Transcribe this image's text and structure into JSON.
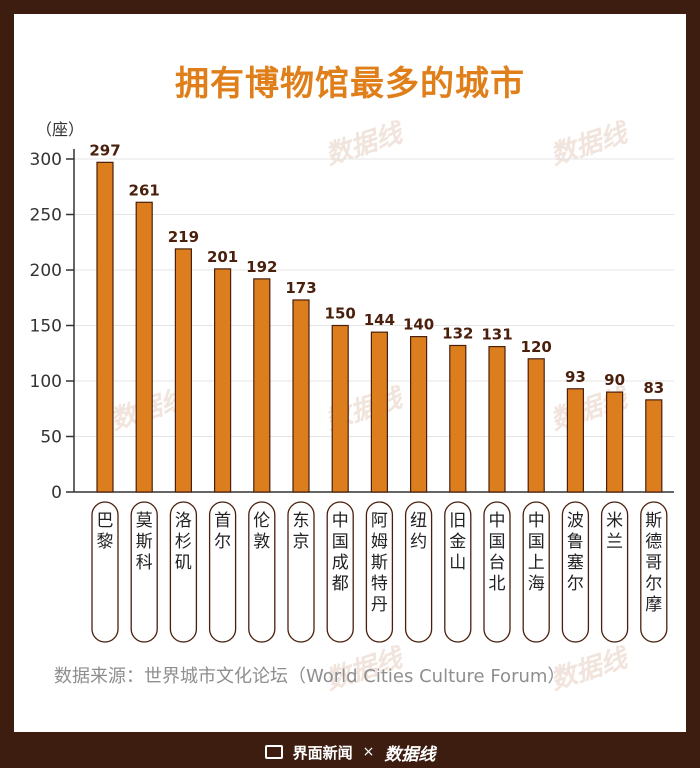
{
  "title": "拥有博物馆最多的城市",
  "source": "数据来源：世界城市文化论坛（World Cities Culture Forum）",
  "footer": {
    "brand1": "界面新闻",
    "times": "×",
    "brand2": "数据线"
  },
  "watermark": "数据线",
  "colors": {
    "bar": "#dd7e1e",
    "bar_stroke": "#4a1f0c",
    "label": "#4a1f0c",
    "title": "#e07f1a",
    "background": "#3c1d10"
  },
  "chart_data": {
    "type": "bar",
    "title": "拥有博物馆最多的城市",
    "ylabel": "（座）",
    "ylim": [
      0,
      300
    ],
    "yticks": [
      "0",
      "50",
      "100",
      "150",
      "200",
      "250",
      "300"
    ],
    "grid": true,
    "categories": [
      "巴黎",
      "莫斯科",
      "洛杉矶",
      "首尔",
      "伦敦",
      "东京",
      "中国成都",
      "阿姆斯特丹",
      "纽约",
      "旧金山",
      "中国台北",
      "中国上海",
      "波鲁塞尔",
      "米兰",
      "斯德哥尔摩"
    ],
    "values": [
      297,
      261,
      219,
      201,
      192,
      173,
      150,
      144,
      140,
      132,
      131,
      120,
      93,
      90,
      83
    ]
  }
}
